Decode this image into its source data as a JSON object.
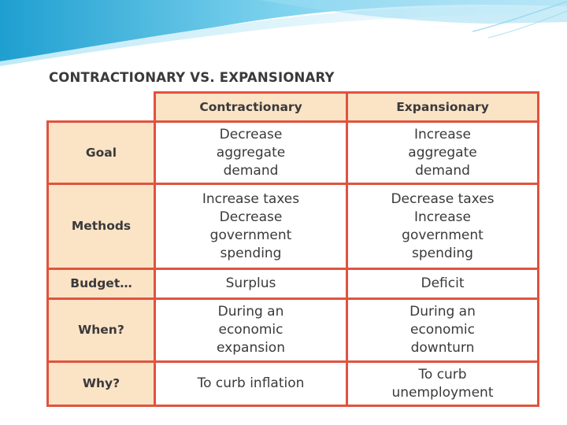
{
  "title": "CONTRACTIONARY VS. EXPANSIONARY",
  "columns": [
    "Contractionary",
    "Expansionary"
  ],
  "rows": [
    {
      "label": "Goal",
      "contractionary": [
        "Decrease",
        "aggregate",
        "demand"
      ],
      "expansionary": [
        "Increase",
        "aggregate",
        "demand"
      ]
    },
    {
      "label": "Methods",
      "contractionary": [
        "Increase taxes",
        "Decrease",
        "government",
        "spending"
      ],
      "expansionary": [
        "Decrease taxes",
        "Increase",
        "government",
        "spending"
      ]
    },
    {
      "label": "Budget…",
      "contractionary": [
        "Surplus"
      ],
      "expansionary": [
        "Deficit"
      ]
    },
    {
      "label": "When?",
      "contractionary": [
        "During an",
        "economic",
        "expansion"
      ],
      "expansionary": [
        "During an",
        "economic",
        "downturn"
      ]
    },
    {
      "label": "Why?",
      "contractionary": [
        "To curb inflation"
      ],
      "expansionary": [
        "To curb",
        "unemployment"
      ]
    }
  ],
  "colors": {
    "border": "#e0533f",
    "header_fill": "#fbe3c6",
    "text": "#3a3a3a",
    "swoosh": "#5bc0de"
  }
}
